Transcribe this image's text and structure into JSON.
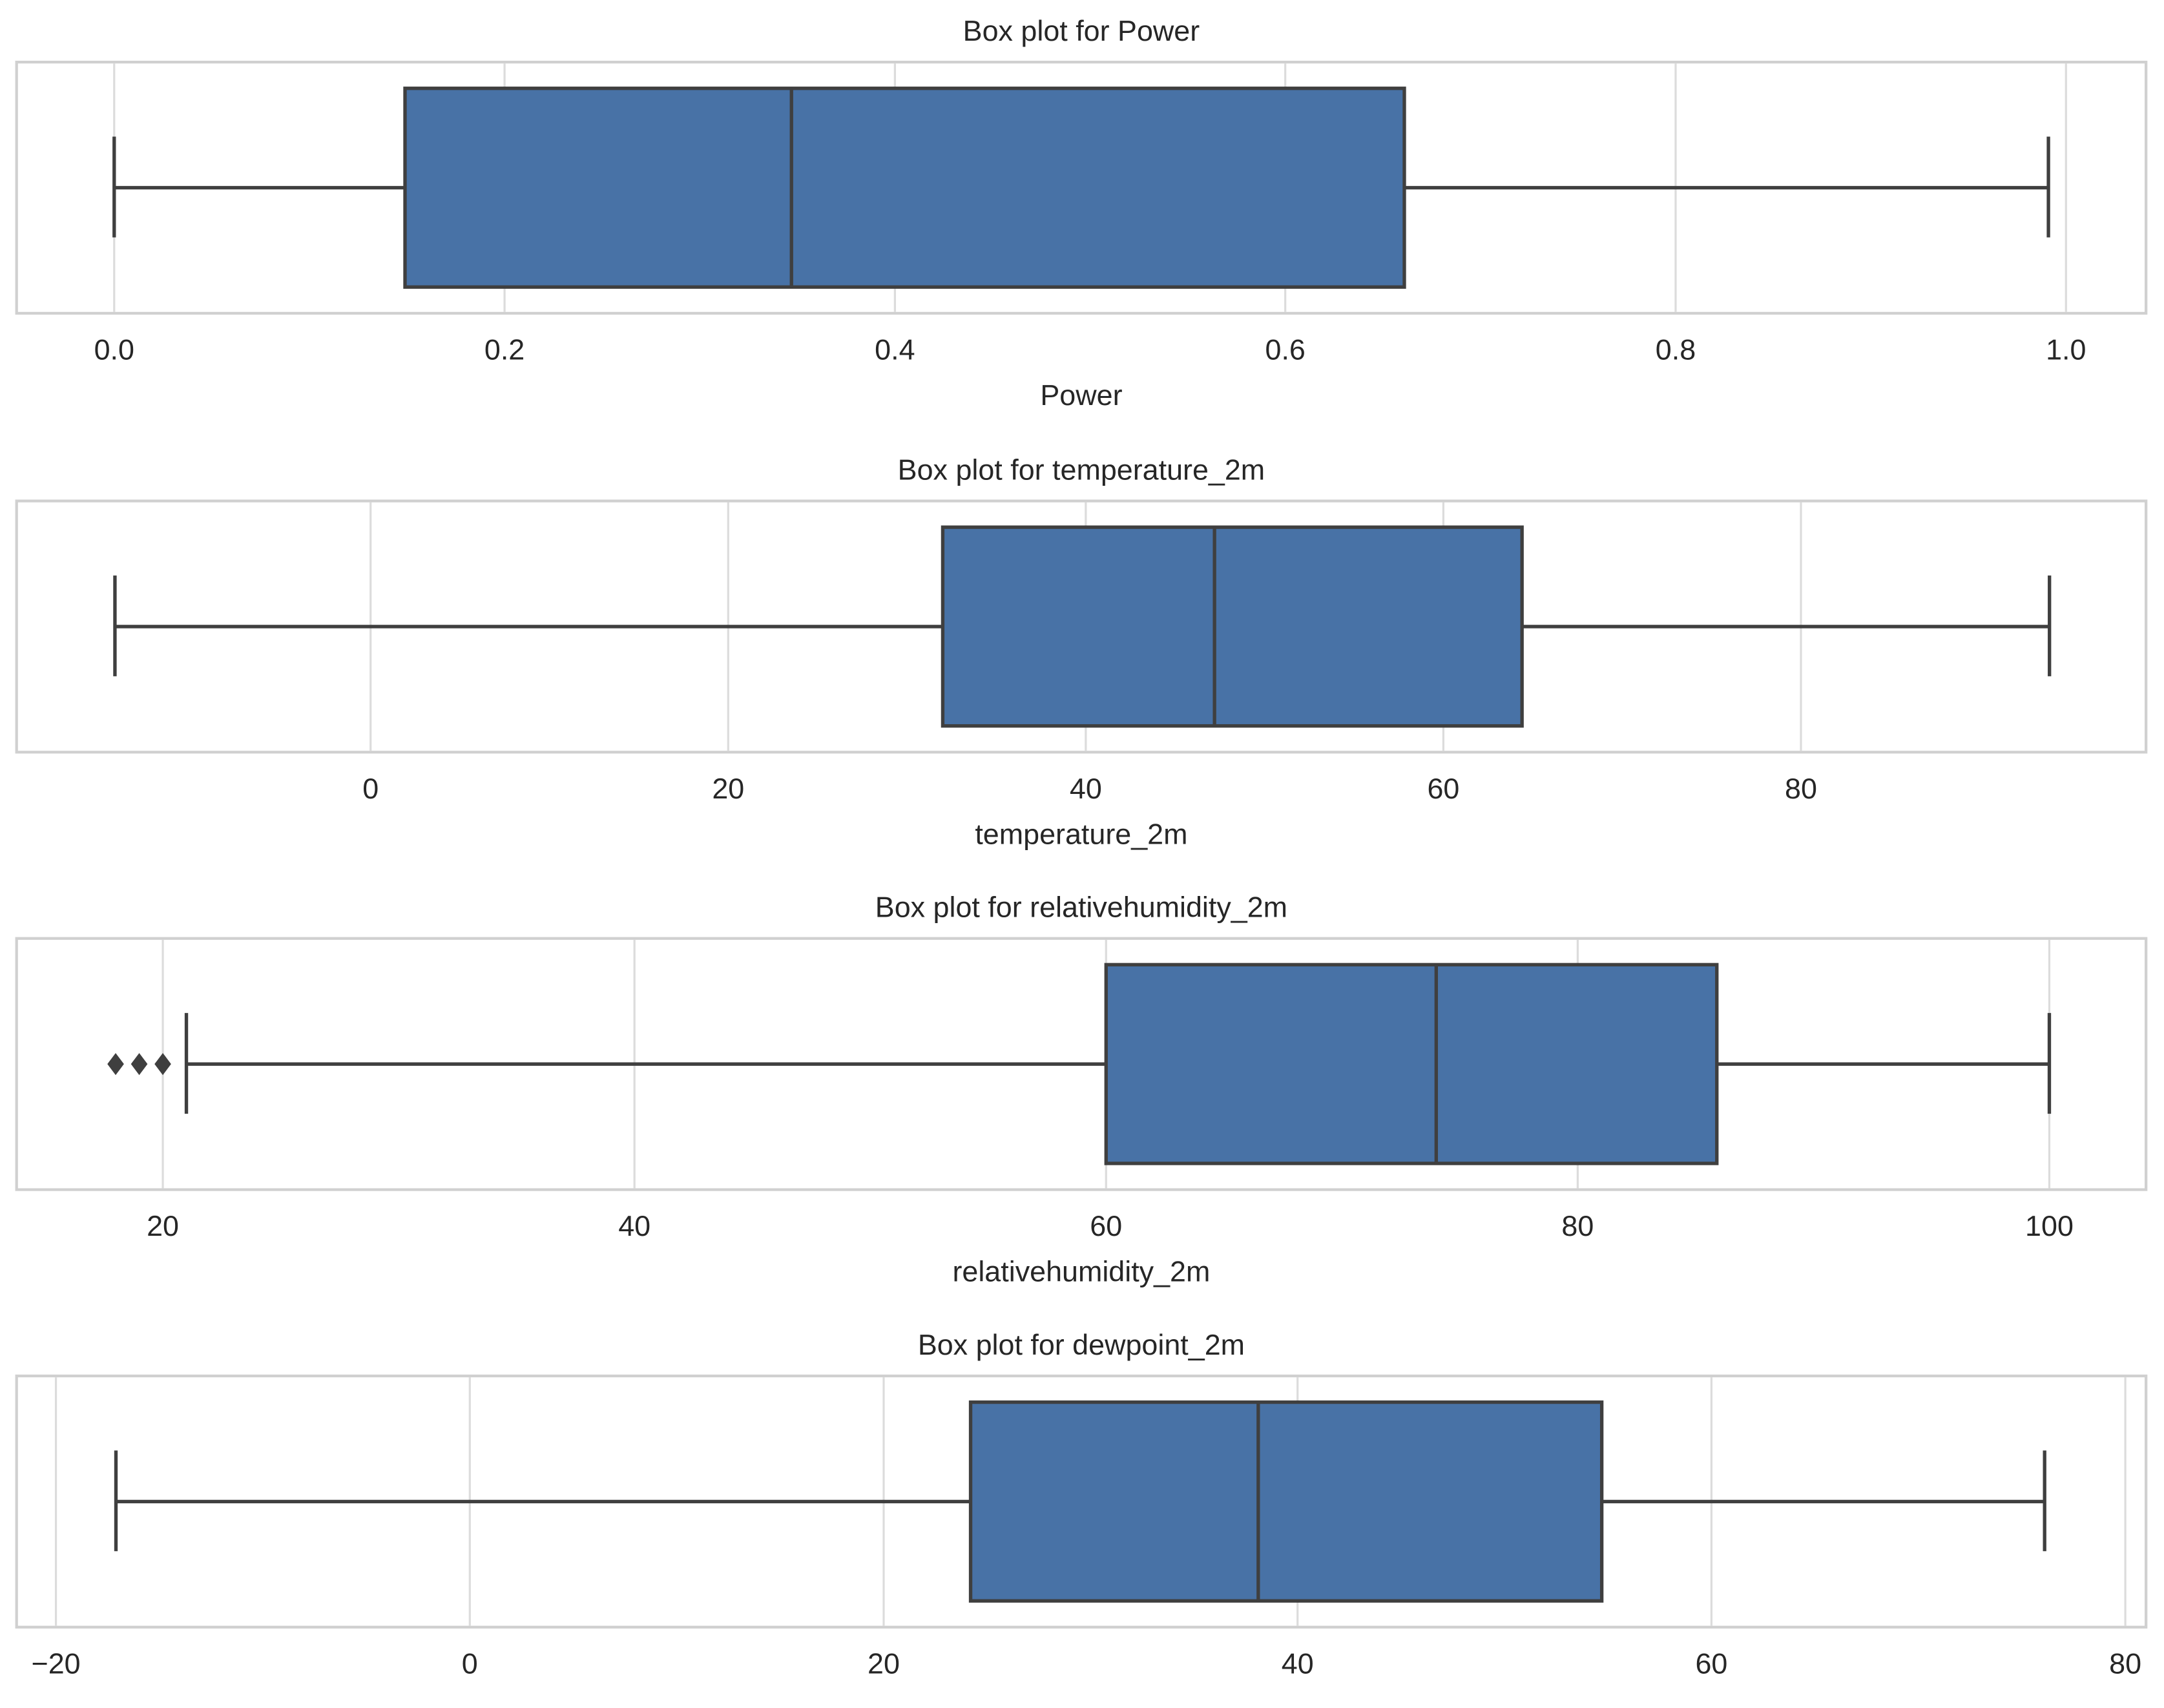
{
  "chart_data": [
    {
      "type": "box",
      "title": "Box plot for Power",
      "xlabel": "Power",
      "color": "#4872a6",
      "grid": true,
      "xlim": [
        -0.05,
        1.041
      ],
      "xticks": [
        {
          "value": 0,
          "label": "0.0"
        },
        0.2,
        0.4,
        0.6,
        0.8,
        {
          "value": 1,
          "label": "1.0"
        }
      ],
      "box": {
        "whislo": 0.0,
        "q1": 0.149,
        "med": 0.347,
        "q3": 0.661,
        "whishi": 0.991,
        "fliers": []
      }
    },
    {
      "type": "box",
      "title": "Box plot for temperature_2m",
      "xlabel": "temperature_2m",
      "color": "#4872a6",
      "grid": true,
      "xlim": [
        -19.8,
        99.3
      ],
      "xticks": [
        0,
        20,
        40,
        60,
        80
      ],
      "box": {
        "whislo": -14.3,
        "q1": 32.0,
        "med": 47.2,
        "q3": 64.4,
        "whishi": 93.9,
        "fliers": []
      }
    },
    {
      "type": "box",
      "title": "Box plot for relativehumidity_2m",
      "xlabel": "relativehumidity_2m",
      "color": "#4872a6",
      "grid": true,
      "xlim": [
        13.8,
        104.1
      ],
      "xticks": [
        20,
        40,
        60,
        80,
        100
      ],
      "box": {
        "whislo": 21.0,
        "q1": 60.0,
        "med": 74.0,
        "q3": 85.9,
        "whishi": 100,
        "fliers": [
          18.0,
          19.0,
          20.0
        ]
      }
    },
    {
      "type": "box",
      "title": "Box plot for dewpoint_2m",
      "color": "#4872a6",
      "grid": true,
      "xlim": [
        -21.9,
        81.0
      ],
      "xticks": [
        {
          "value": -20,
          "label": "−20"
        },
        0,
        20,
        40,
        60,
        80
      ],
      "box": {
        "whislo": -17.1,
        "q1": 24.2,
        "med": 38.1,
        "q3": 54.7,
        "whishi": 76.1,
        "fliers": []
      }
    }
  ]
}
